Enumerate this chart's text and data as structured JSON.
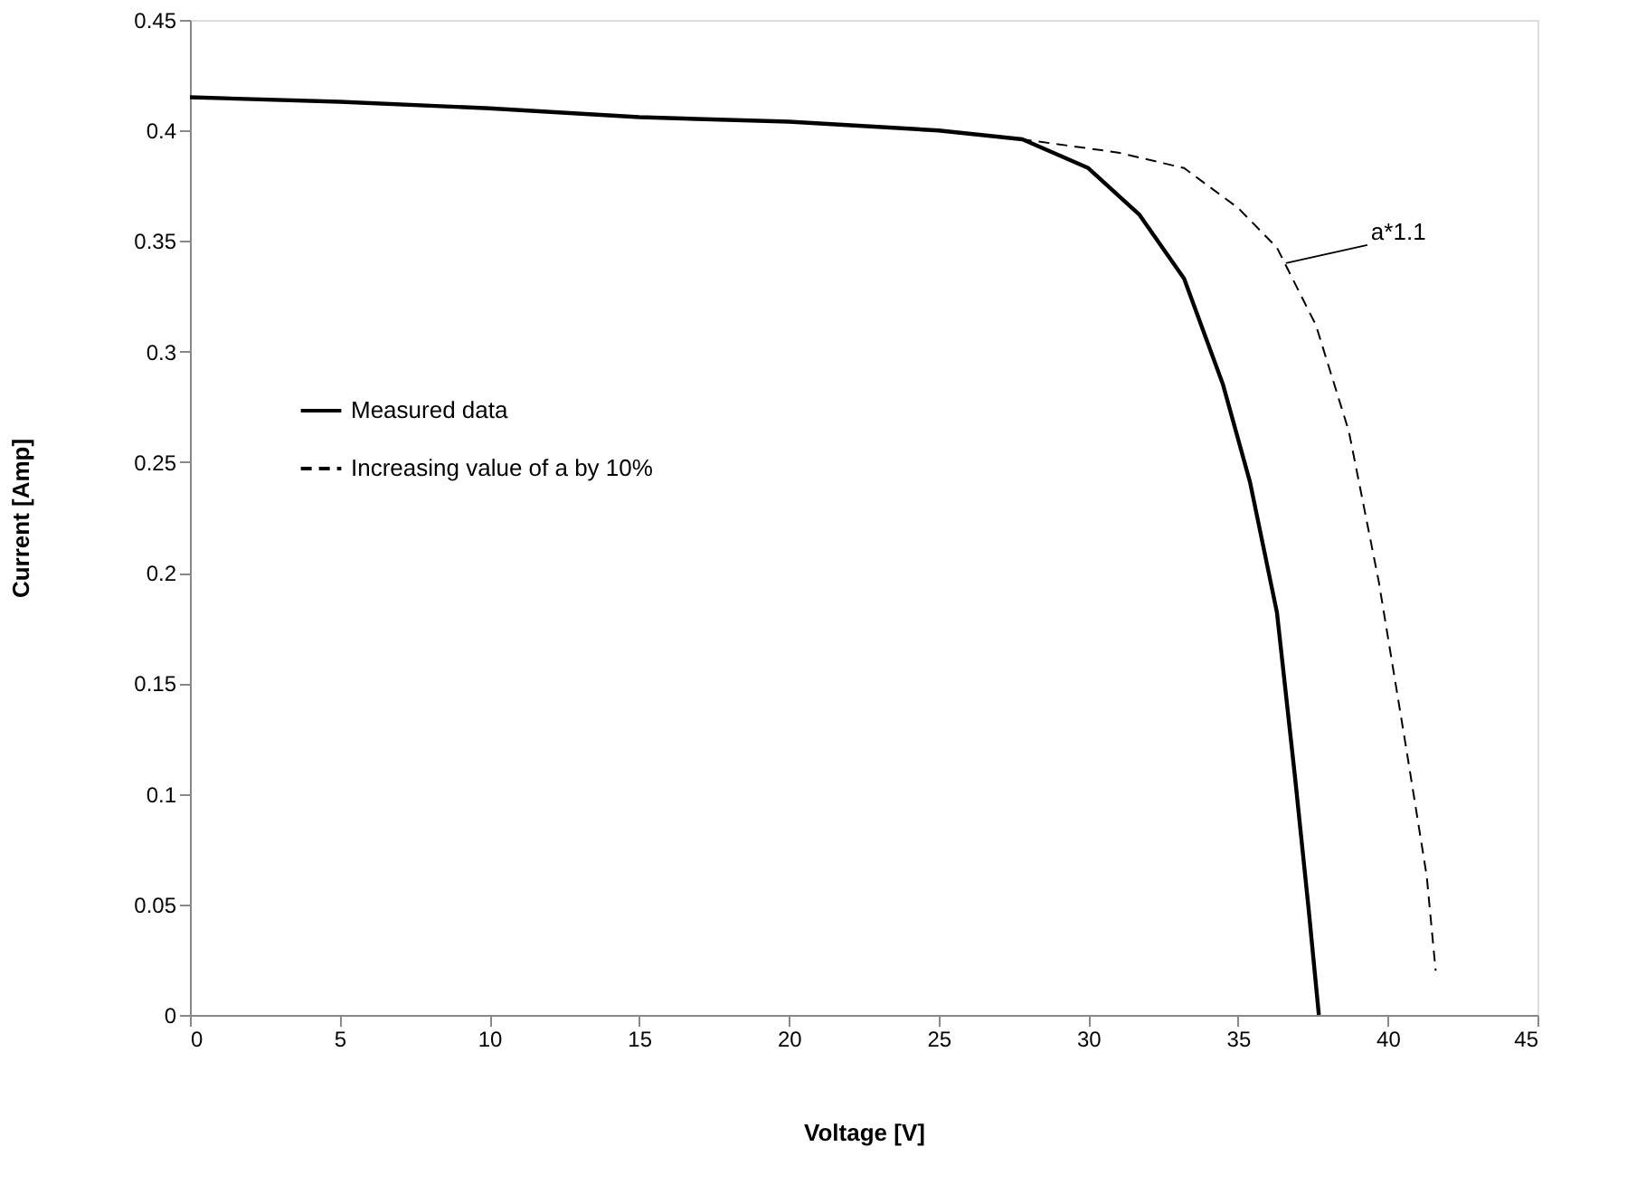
{
  "chart_data": {
    "type": "line",
    "xlabel": "Voltage [V]",
    "ylabel": "Current [Amp]",
    "xlim": [
      0,
      45
    ],
    "xticks": [
      0,
      5,
      10,
      15,
      20,
      25,
      30,
      35,
      40,
      45
    ],
    "ylim": [
      0,
      0.45
    ],
    "yticks": [
      0,
      0.05,
      0.1,
      0.15,
      0.2,
      0.25,
      0.3,
      0.35,
      0.4,
      0.45
    ],
    "grid": false,
    "legend": "left",
    "marker": "none",
    "series": [
      {
        "name": "Measured data",
        "color": "#000000",
        "line_style": "solid",
        "x": [
          0,
          5,
          10,
          15,
          20,
          25,
          27.8,
          30,
          31.7,
          33.2,
          34.5,
          35.4,
          36.3,
          36.9,
          37.35,
          37.7
        ],
        "values": [
          0.415,
          0.413,
          0.41,
          0.406,
          0.404,
          0.4,
          0.396,
          0.383,
          0.362,
          0.333,
          0.285,
          0.241,
          0.182,
          0.108,
          0.049,
          0
        ]
      },
      {
        "name": "Increasing value of a by 10%",
        "color": "#000000",
        "line_style": "dashed",
        "x": [
          0,
          5,
          10,
          15,
          20,
          25,
          27.8,
          31.0,
          33.2,
          35.0,
          36.3,
          37.6,
          38.7,
          39.7,
          40.6,
          41.3,
          41.6
        ],
        "values": [
          0.415,
          0.413,
          0.41,
          0.406,
          0.404,
          0.4,
          0.396,
          0.39,
          0.383,
          0.365,
          0.347,
          0.312,
          0.264,
          0.196,
          0.122,
          0.063,
          0.02
        ]
      }
    ],
    "annotations": [
      {
        "text": "a*1.1",
        "x": 36.6,
        "y": 0.34
      }
    ]
  }
}
